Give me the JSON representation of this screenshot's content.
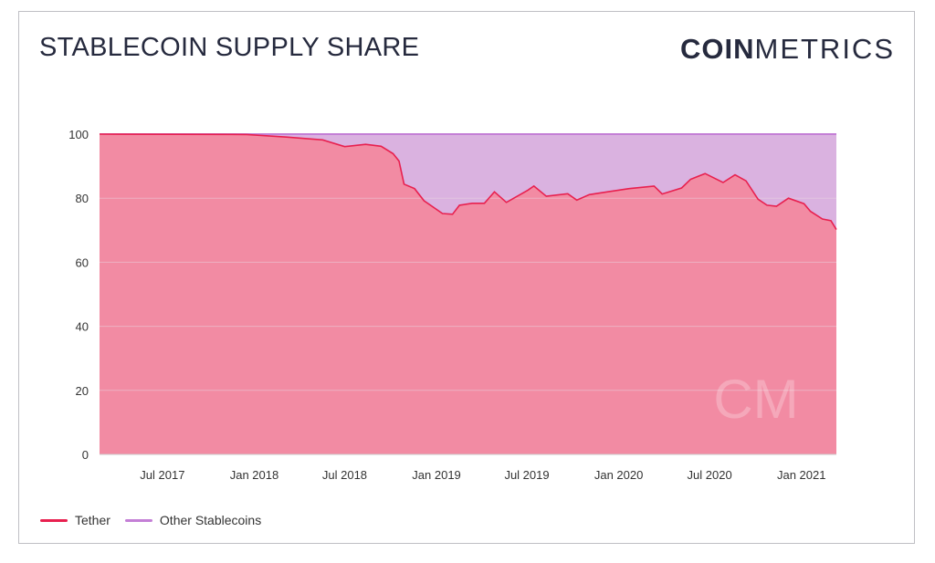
{
  "header": {
    "title": "STABLECOIN SUPPLY SHARE",
    "logo_bold": "COIN",
    "logo_light": "METRICS",
    "watermark": "CM"
  },
  "colors": {
    "tether_line": "#e8204f",
    "tether_fill": "#f28ba3",
    "other_line": "#c47fd6",
    "other_fill": "#dab2e0",
    "grid": "#ead6e0"
  },
  "chart_data": {
    "type": "area",
    "stacked": true,
    "percent": true,
    "title": "STABLECOIN SUPPLY SHARE",
    "xlabel": "",
    "ylabel": "",
    "ylim": [
      0,
      100
    ],
    "xlim": [
      "2017-02-25",
      "2021-03-12"
    ],
    "yticks": [
      0,
      20,
      40,
      60,
      80,
      100
    ],
    "xticks": [
      {
        "date": "2017-07-01",
        "label": "Jul 2017"
      },
      {
        "date": "2018-01-01",
        "label": "Jan 2018"
      },
      {
        "date": "2018-07-01",
        "label": "Jul 2018"
      },
      {
        "date": "2019-01-01",
        "label": "Jan 2019"
      },
      {
        "date": "2019-07-01",
        "label": "Jul 2019"
      },
      {
        "date": "2020-01-01",
        "label": "Jan 2020"
      },
      {
        "date": "2020-07-01",
        "label": "Jul 2020"
      },
      {
        "date": "2021-01-01",
        "label": "Jan 2021"
      }
    ],
    "grid": true,
    "legend": "bottom-left",
    "series": [
      {
        "name": "Tether",
        "points": [
          [
            "2017-02-25",
            100
          ],
          [
            "2017-12-17",
            99.9
          ],
          [
            "2018-03-06",
            99.1
          ],
          [
            "2018-05-18",
            98.2
          ],
          [
            "2018-07-01",
            96.1
          ],
          [
            "2018-08-12",
            96.8
          ],
          [
            "2018-09-12",
            96.2
          ],
          [
            "2018-10-06",
            93.9
          ],
          [
            "2018-10-18",
            91.6
          ],
          [
            "2018-10-28",
            84.4
          ],
          [
            "2018-11-18",
            83.0
          ],
          [
            "2018-12-07",
            79.2
          ],
          [
            "2019-01-13",
            75.2
          ],
          [
            "2019-02-02",
            75.0
          ],
          [
            "2019-02-16",
            77.8
          ],
          [
            "2019-03-13",
            78.4
          ],
          [
            "2019-04-07",
            78.4
          ],
          [
            "2019-04-27",
            82.0
          ],
          [
            "2019-05-21",
            78.7
          ],
          [
            "2019-07-03",
            82.5
          ],
          [
            "2019-07-15",
            83.8
          ],
          [
            "2019-08-09",
            80.6
          ],
          [
            "2019-09-21",
            81.4
          ],
          [
            "2019-10-09",
            79.4
          ],
          [
            "2019-11-03",
            81.1
          ],
          [
            "2019-12-10",
            82.0
          ],
          [
            "2020-01-22",
            83.0
          ],
          [
            "2020-03-12",
            83.8
          ],
          [
            "2020-03-28",
            81.3
          ],
          [
            "2020-05-06",
            83.2
          ],
          [
            "2020-05-24",
            85.9
          ],
          [
            "2020-06-22",
            87.7
          ],
          [
            "2020-07-28",
            84.9
          ],
          [
            "2020-08-21",
            87.3
          ],
          [
            "2020-09-12",
            85.4
          ],
          [
            "2020-10-06",
            79.7
          ],
          [
            "2020-10-24",
            77.8
          ],
          [
            "2020-11-12",
            77.5
          ],
          [
            "2020-12-06",
            80.0
          ],
          [
            "2021-01-06",
            78.3
          ],
          [
            "2021-01-19",
            75.9
          ],
          [
            "2021-02-12",
            73.5
          ],
          [
            "2021-03-01",
            73.0
          ],
          [
            "2021-03-12",
            70.2
          ]
        ]
      },
      {
        "name": "Other Stablecoins",
        "note_stacked_top": 100
      }
    ]
  }
}
